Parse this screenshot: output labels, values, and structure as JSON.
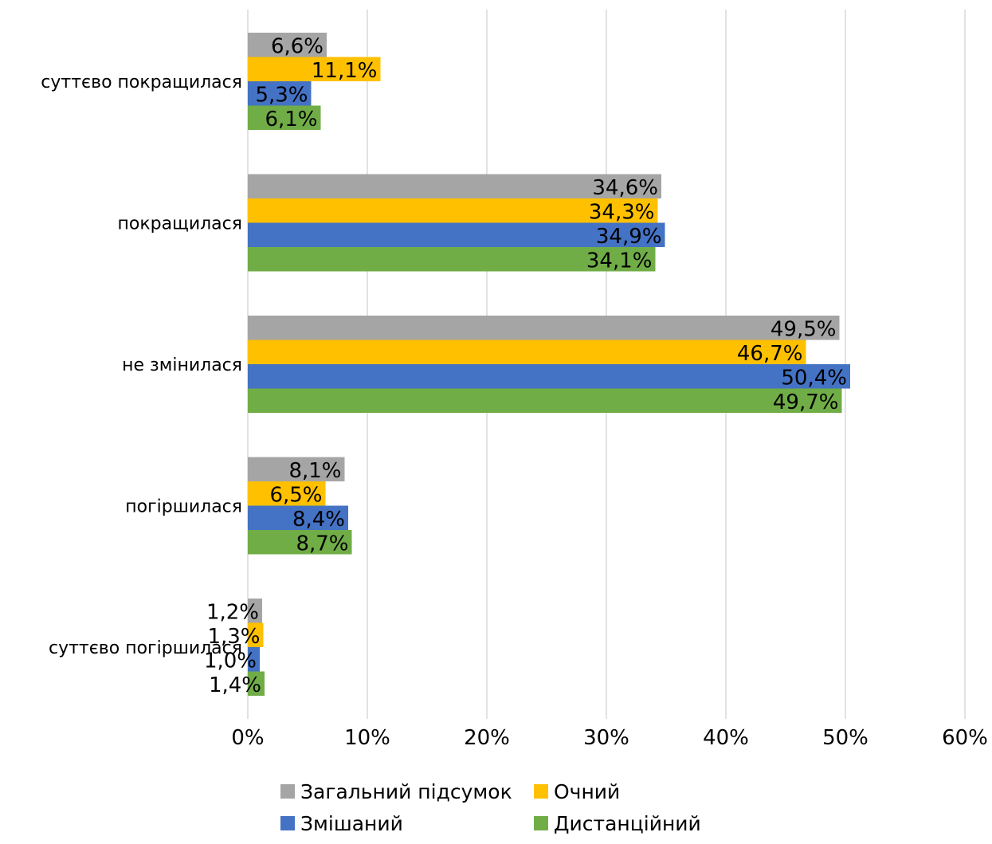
{
  "chart_data": {
    "type": "bar",
    "orientation": "horizontal",
    "title": "",
    "xlabel": "",
    "ylabel": "",
    "xlim": [
      0,
      60
    ],
    "x_ticks": [
      0,
      10,
      20,
      30,
      40,
      50,
      60
    ],
    "x_tick_labels": [
      "0%",
      "10%",
      "20%",
      "30%",
      "40%",
      "50%",
      "60%"
    ],
    "grid": "vertical",
    "legend_position": "bottom",
    "categories": [
      "суттєво покращилася",
      "покращилася",
      "не змінилася",
      "погіршилася",
      "суттєво погіршилася"
    ],
    "series": [
      {
        "name": "Загальний підсумок",
        "color": "#A5A5A5",
        "values": [
          6.6,
          34.6,
          49.5,
          8.1,
          1.2
        ],
        "labels": [
          "6,6%",
          "34,6%",
          "49,5%",
          "8,1%",
          "1,2%"
        ]
      },
      {
        "name": "Очний",
        "color": "#FFC000",
        "values": [
          11.1,
          34.3,
          46.7,
          6.5,
          1.3
        ],
        "labels": [
          "11,1%",
          "34,3%",
          "46,7%",
          "6,5%",
          "1,3%"
        ]
      },
      {
        "name": "Змішаний",
        "color": "#4472C4",
        "values": [
          5.3,
          34.9,
          50.4,
          8.4,
          1.0
        ],
        "labels": [
          "5,3%",
          "34,9%",
          "50,4%",
          "8,4%",
          "1,0%"
        ]
      },
      {
        "name": "Дистанційний",
        "color": "#70AD47",
        "values": [
          6.1,
          34.1,
          49.7,
          8.7,
          1.4
        ],
        "labels": [
          "6,1%",
          "34,1%",
          "49,7%",
          "8,7%",
          "1,4%"
        ]
      }
    ],
    "gridline_color": "#D9D9D9"
  }
}
